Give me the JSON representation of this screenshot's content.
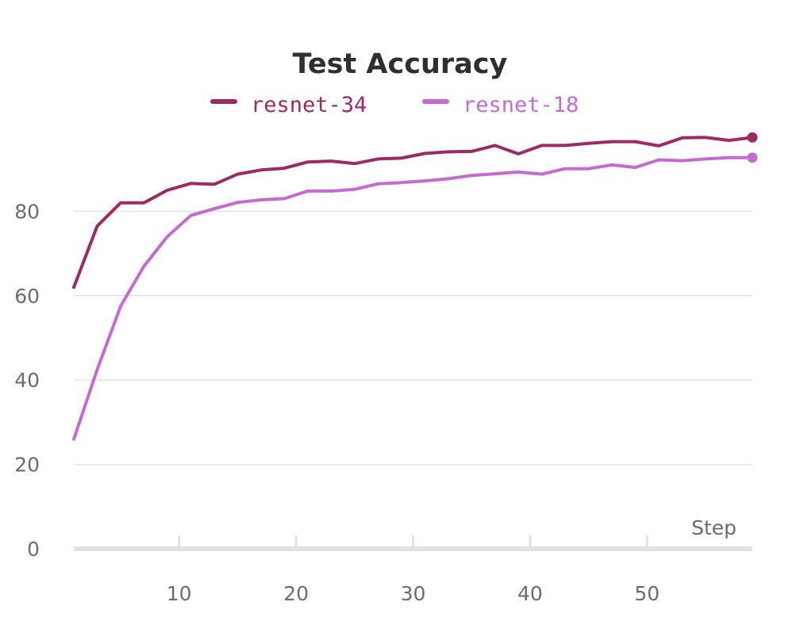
{
  "chart_data": {
    "type": "line",
    "title": "Test Accuracy",
    "xlabel": "Step",
    "ylabel": "",
    "xlim": [
      1,
      59
    ],
    "ylim": [
      0,
      100
    ],
    "xticks": [
      10,
      20,
      30,
      40,
      50
    ],
    "yticks": [
      0,
      20,
      40,
      60,
      80
    ],
    "grid": "horizontal",
    "legend_position": "top-center",
    "x": [
      1,
      3,
      5,
      7,
      9,
      11,
      13,
      15,
      17,
      19,
      21,
      23,
      25,
      27,
      29,
      31,
      33,
      35,
      37,
      39,
      41,
      43,
      45,
      47,
      49,
      51,
      53,
      55,
      57,
      59
    ],
    "series": [
      {
        "name": "resnet-34",
        "color": "#9e2a63",
        "values": [
          62,
          76.5,
          82,
          82,
          85,
          86.6,
          86.4,
          88.8,
          89.8,
          90.2,
          91.7,
          91.9,
          91.3,
          92.4,
          92.6,
          93.7,
          94.1,
          94.2,
          95.6,
          93.6,
          95.6,
          95.6,
          96.1,
          96.5,
          96.5,
          95.5,
          97.4,
          97.5,
          96.8,
          97.5
        ]
      },
      {
        "name": "resnet-18",
        "color": "#c56bd0",
        "values": [
          26,
          42.5,
          57.5,
          67,
          74,
          79,
          80.6,
          82.1,
          82.7,
          83,
          84.8,
          84.8,
          85.2,
          86.5,
          86.8,
          87.2,
          87.7,
          88.5,
          88.9,
          89.3,
          88.8,
          90.1,
          90.1,
          91,
          90.4,
          92.2,
          92,
          92.4,
          92.7,
          92.7
        ]
      }
    ]
  }
}
